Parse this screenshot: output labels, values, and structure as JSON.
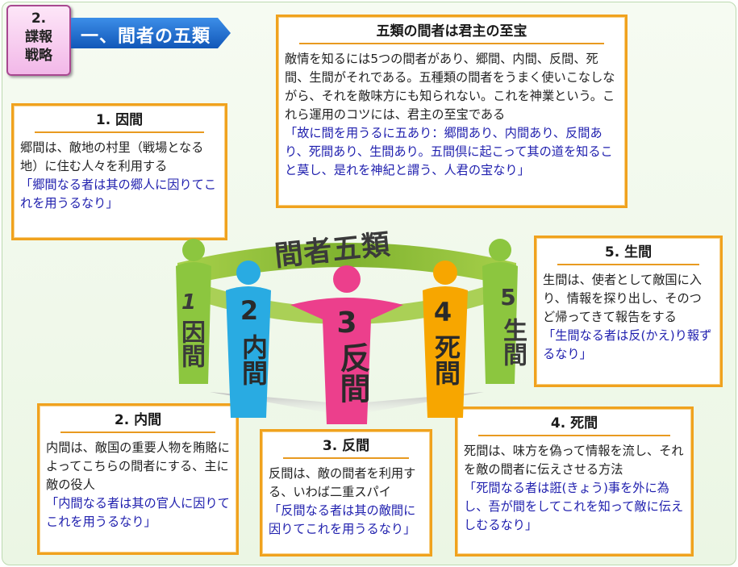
{
  "tag": {
    "line1": "2.",
    "line2": "諜報",
    "line3": "戦略"
  },
  "banner": {
    "text": "一、間者の五類"
  },
  "diagram": {
    "heading": "間者五類",
    "figures": [
      {
        "num": "1",
        "name": "因間",
        "color": "#8cc63f"
      },
      {
        "num": "2",
        "name": "内間",
        "color": "#29abe2"
      },
      {
        "num": "3",
        "name": "反間",
        "color": "#ec3f8c"
      },
      {
        "num": "4",
        "name": "死間",
        "color": "#f7a600"
      },
      {
        "num": "5",
        "name": "生間",
        "color": "#8cc63f"
      }
    ]
  },
  "boxes": {
    "top": {
      "title": "五類の間者は君主の至宝",
      "body": "敵情を知るには5つの間者があり、郷間、内間、反間、死間、生間がそれである。五種類の間者をうまく使いこなしながら、それを敵味方にも知られない。これを神業という。これら運用のコツには、君主の至宝である",
      "quote": "「故に間を用うるに五あり：郷間あり、内間あり、反間あり、死間あり、生間あり。五間倶に起こって其の道を知ること莫し、是れを神紀と謂う、人君の宝なり」"
    },
    "b1": {
      "title": "1. 因間",
      "body": "郷間は、敵地の村里（戦場となる地）に住む人々を利用する",
      "quote": "「郷間なる者は其の郷人に因りてこれを用うるなり」"
    },
    "b2": {
      "title": "2. 内間",
      "body": "内間は、敵国の重要人物を賄賂によってこちらの間者にする、主に敵の役人",
      "quote": "「内間なる者は其の官人に因りてこれを用うるなり」"
    },
    "b3": {
      "title": "3. 反間",
      "body": "反間は、敵の間者を利用する、いわば二重スパイ",
      "quote": "「反間なる者は其の敵間に因りてこれを用うるなり」"
    },
    "b4": {
      "title": "4. 死間",
      "body": "死間は、味方を偽って情報を流し、それを敵の間者に伝えさせる方法",
      "quote": "「死間なる者は誑(きょう)事を外に為し、吾が間をしてこれを知って敵に伝えしむるなり」"
    },
    "b5": {
      "title": "5.  生間",
      "body": "生間は、使者として敵国に入り、情報を探り出し、そのつど帰ってきて報告をする",
      "quote": "「生間なる者は反(かえ)り報ずるなり」"
    }
  },
  "colors": {
    "box_border": "#f0a21e",
    "quote_text": "#1f1fae",
    "banner": "#1c6fd1",
    "tag": "#f2b8e8"
  }
}
